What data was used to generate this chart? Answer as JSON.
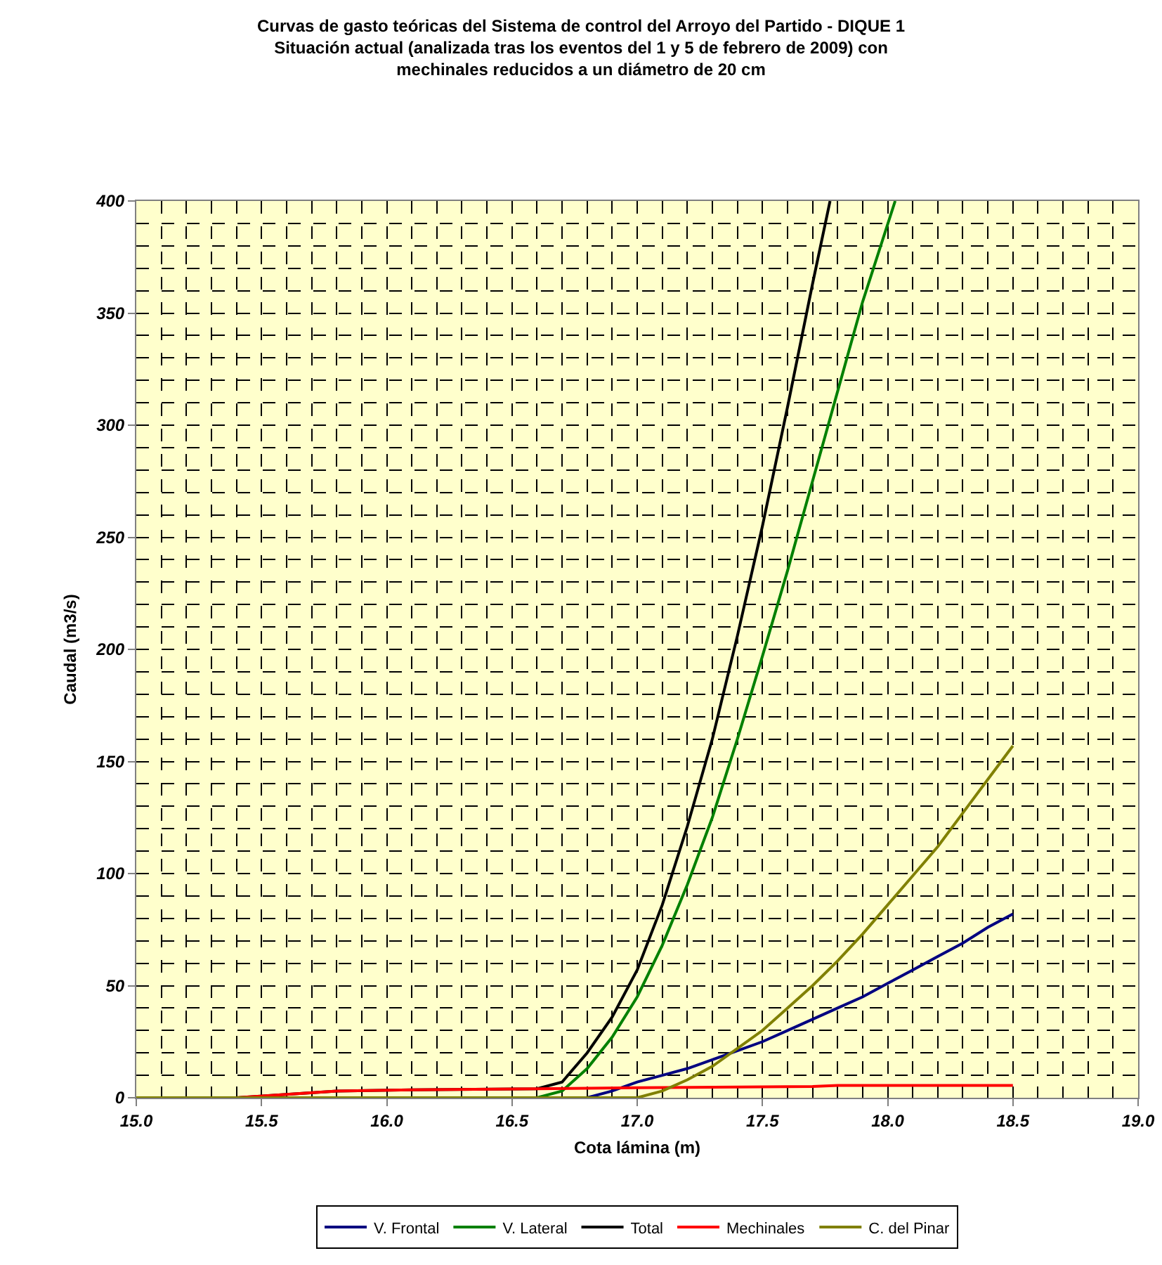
{
  "chart_data": {
    "type": "line",
    "title": "Curvas de gasto teóricas del Sistema de control del Arroyo del Partido - DIQUE 1\nSituación actual (analizada tras los eventos del 1 y 5 de febrero de 2009) con\nmechinales reducidos a un diámetro de 20 cm",
    "xlabel": "Cota lámina (m)",
    "ylabel": "Caudal (m3/s)",
    "xlim": [
      15,
      19
    ],
    "xticks": [
      {
        "value": 15,
        "label": "15.0"
      },
      {
        "value": 15.5,
        "label": "15.5"
      },
      {
        "value": 16,
        "label": "16.0"
      },
      {
        "value": 16.5,
        "label": "16.5"
      },
      {
        "value": 17,
        "label": "17.0"
      },
      {
        "value": 17.5,
        "label": "17.5"
      },
      {
        "value": 18,
        "label": "18.0"
      },
      {
        "value": 18.5,
        "label": "18.5"
      },
      {
        "value": 19,
        "label": "19.0"
      }
    ],
    "ylim": [
      0,
      400
    ],
    "yticks": [
      0,
      50,
      100,
      150,
      200,
      250,
      300,
      350,
      400
    ],
    "grid": true,
    "legend": "bottom",
    "marker": "none",
    "line_style": "solid",
    "series": [
      {
        "name": "V. Frontal",
        "color": "#000080",
        "x": [
          15,
          16.8,
          16.9,
          17.0,
          17.1,
          17.2,
          17.3,
          17.4,
          17.5,
          17.6,
          17.7,
          17.8,
          17.9,
          18.0,
          18.1,
          18.2,
          18.3,
          18.4,
          18.5
        ],
        "values": [
          0,
          0,
          3,
          7,
          10,
          13,
          17,
          21,
          25,
          30,
          35,
          40,
          45,
          51,
          57,
          63,
          69,
          76,
          82
        ]
      },
      {
        "name": "V. Lateral",
        "color": "#008000",
        "x": [
          15,
          16.6,
          16.7,
          16.8,
          16.9,
          17.0,
          17.1,
          17.2,
          17.3,
          17.4,
          17.5,
          17.6,
          17.7,
          17.8,
          17.9,
          18.03
        ],
        "values": [
          0,
          0,
          3,
          13,
          27,
          45,
          68,
          95,
          125,
          160,
          197,
          235,
          275,
          315,
          355,
          400
        ]
      },
      {
        "name": "Total",
        "color": "#000000",
        "x": [
          15,
          15.4,
          15.6,
          15.8,
          16.1,
          16.6,
          16.7,
          16.8,
          16.9,
          17.0,
          17.1,
          17.2,
          17.3,
          17.4,
          17.5,
          17.6,
          17.7,
          17.77
        ],
        "values": [
          0,
          0,
          1.5,
          3,
          3.5,
          4,
          7,
          20,
          36,
          57,
          86,
          121,
          160,
          206,
          255,
          308,
          363,
          400
        ]
      },
      {
        "name": "Mechinales",
        "color": "#ff0000",
        "x": [
          15,
          15.4,
          15.6,
          15.8,
          16.1,
          16.6,
          17.0,
          17.7,
          17.8,
          18.5
        ],
        "values": [
          0,
          0,
          1.5,
          3,
          3.5,
          4,
          4.5,
          5,
          5.5,
          5.5
        ]
      },
      {
        "name": "C. del Pinar",
        "color": "#808000",
        "x": [
          15,
          17.0,
          17.1,
          17.2,
          17.3,
          17.4,
          17.5,
          17.6,
          17.7,
          17.8,
          17.9,
          18.0,
          18.1,
          18.2,
          18.3,
          18.4,
          18.5
        ],
        "values": [
          0,
          0,
          3,
          8,
          14,
          22,
          30,
          40,
          50,
          61,
          73,
          86,
          99,
          112,
          127,
          142,
          157
        ]
      }
    ]
  }
}
